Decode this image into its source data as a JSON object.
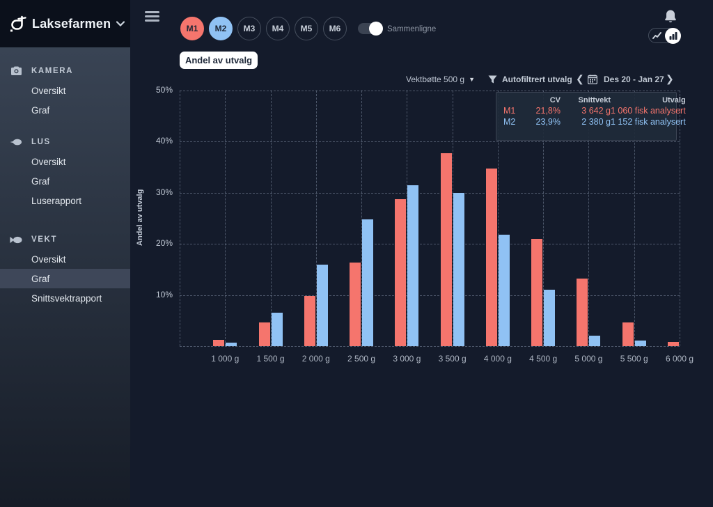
{
  "brand": {
    "name": "Laksefarmen"
  },
  "sidebar": {
    "sections": [
      {
        "label": "KAMERA",
        "icon": "camera-icon",
        "items": [
          {
            "label": "Oversikt"
          },
          {
            "label": "Graf"
          }
        ]
      },
      {
        "label": "LUS",
        "icon": "louse-icon",
        "items": [
          {
            "label": "Oversikt"
          },
          {
            "label": "Graf"
          },
          {
            "label": "Luserapport"
          }
        ]
      },
      {
        "label": "VEKT",
        "icon": "fish-icon",
        "items": [
          {
            "label": "Oversikt"
          },
          {
            "label": "Graf",
            "active": true
          },
          {
            "label": "Snittsvektrapport"
          }
        ]
      }
    ]
  },
  "topbar": {
    "merd_buttons": [
      {
        "label": "M1",
        "selected": true,
        "color": "#f5756d"
      },
      {
        "label": "M2",
        "selected": true,
        "color": "#90c2f4"
      },
      {
        "label": "M3",
        "selected": false
      },
      {
        "label": "M4",
        "selected": false
      },
      {
        "label": "M5",
        "selected": false
      },
      {
        "label": "M6",
        "selected": false
      }
    ],
    "compare_toggle": {
      "label": "Sammenligne",
      "on": true
    },
    "view_button": "Andel av utvalg"
  },
  "chart_header": {
    "bucket_select": "Vektbøtte 500 g",
    "filter_label": "Autofiltrert utvalg",
    "date_range": "Des 20 - Jan 27"
  },
  "legend_table": {
    "headers": {
      "cv": "CV",
      "snittvekt": "Snittvekt",
      "utvalg": "Utvalg"
    },
    "rows": [
      {
        "name": "M1",
        "cv": "21,8%",
        "snittvekt": "3 642 g",
        "utvalg": "1 060 fisk analysert",
        "color": "#f5756d"
      },
      {
        "name": "M2",
        "cv": "23,9%",
        "snittvekt": "2 380 g",
        "utvalg": "1 152 fisk analysert",
        "color": "#90c2f4"
      }
    ]
  },
  "chart_data": {
    "type": "bar",
    "title": "",
    "xlabel": "",
    "ylabel": "Andel av utvalg",
    "ylim": [
      0,
      50
    ],
    "yticks": [
      "50%",
      "40%",
      "30%",
      "20%",
      "10%"
    ],
    "grid": "dashed",
    "legend_position": "top-right",
    "categories": [
      "1 000 g",
      "1 500 g",
      "2 000 g",
      "2 500 g",
      "3 000 g",
      "3 500 g",
      "4 000 g",
      "4 500 g",
      "5 000 g",
      "5 500 g",
      "6 000 g"
    ],
    "series": [
      {
        "name": "M1",
        "color": "#f5756d",
        "values": [
          1.2,
          4.7,
          9.8,
          16.4,
          28.8,
          37.8,
          34.8,
          21.0,
          13.2,
          4.7,
          0.8
        ]
      },
      {
        "name": "M2",
        "color": "#90c2f4",
        "values": [
          0.7,
          6.5,
          16.0,
          24.8,
          31.5,
          30.0,
          21.8,
          11.0,
          2.1,
          1.1,
          0
        ]
      }
    ]
  },
  "colors": {
    "background": "#141b2b",
    "sidebar_top": "#3d4859",
    "sidebar_header": "#0b101b",
    "series_m1": "#f5756d",
    "series_m2": "#90c2f4",
    "grid": "#9eacc0"
  }
}
